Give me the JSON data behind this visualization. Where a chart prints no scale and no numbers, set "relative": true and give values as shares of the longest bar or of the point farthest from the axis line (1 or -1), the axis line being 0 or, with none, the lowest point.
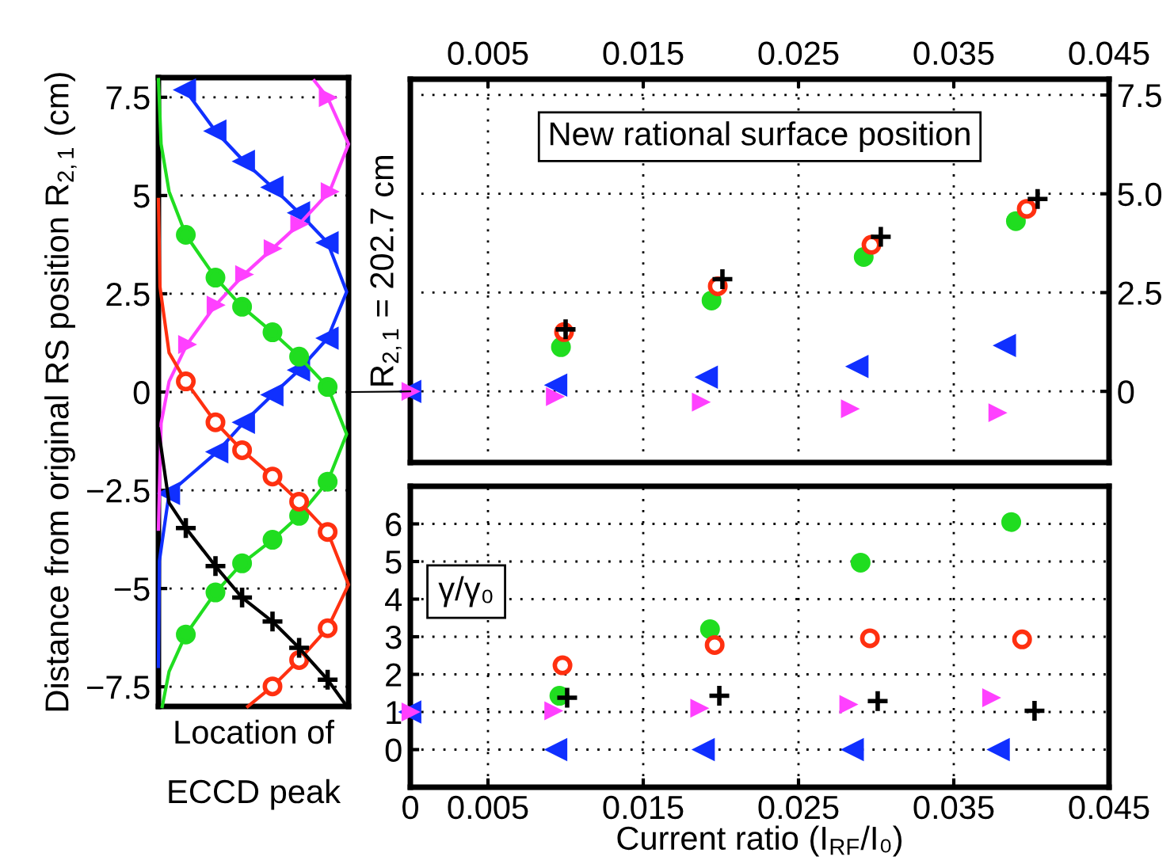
{
  "chart_data": [
    {
      "type": "line",
      "orientation": "horizontal",
      "relative": true,
      "xlabel": "Location of\nECCD peak",
      "ylabel": "Distance from original RS position R$_{2,1}$ (cm)",
      "ylim": [
        -8,
        8
      ],
      "yticks": [
        {
          "value": -7.5,
          "label": "−7.5"
        },
        {
          "value": -5,
          "label": "−5"
        },
        {
          "value": -2.5,
          "label": "−2.5"
        },
        0,
        2.5,
        5,
        7.5
      ],
      "grid": "y",
      "tick_labels": "y",
      "series": [
        {
          "type": "line",
          "color": "#1030ff",
          "marker": "none",
          "x": [
            -6.98,
            -4.3,
            -2.58,
            -1.52,
            -0.77,
            -0.07,
            0.56,
            1.37,
            2.55,
            3.8,
            4.56,
            5.21,
            5.87,
            6.64,
            7.69
          ],
          "values": [
            0,
            0.005,
            0.056,
            0.31,
            0.45,
            0.6,
            0.74,
            0.89,
            0.99,
            0.89,
            0.74,
            0.6,
            0.45,
            0.3,
            0.14
          ]
        },
        {
          "type": "scatter",
          "color": "#1030ff",
          "marker": "triangle_left",
          "x": [
            -2.58,
            -1.52,
            -0.77,
            -0.07,
            0.56,
            1.37,
            3.8,
            4.56,
            5.21,
            5.87,
            6.64,
            7.69
          ],
          "values": [
            0.056,
            0.31,
            0.45,
            0.6,
            0.74,
            0.89,
            0.89,
            0.74,
            0.6,
            0.45,
            0.3,
            0.14
          ]
        },
        {
          "type": "line",
          "color": "#ff40ff",
          "marker": "none",
          "x": [
            7.92,
            7.49,
            6.31,
            5.1,
            4.27,
            3.65,
            2.99,
            2.21,
            1.21,
            0.27,
            -0.8,
            -3.49
          ],
          "values": [
            0.82,
            0.89,
            1.0,
            0.9,
            0.74,
            0.6,
            0.45,
            0.3,
            0.15,
            0.056,
            0.014,
            0
          ]
        },
        {
          "type": "scatter",
          "color": "#ff40ff",
          "marker": "triangle_right",
          "x": [
            7.49,
            5.1,
            4.27,
            3.65,
            2.99,
            2.21,
            1.21
          ],
          "values": [
            0.89,
            0.9,
            0.74,
            0.6,
            0.45,
            0.3,
            0.15
          ]
        },
        {
          "type": "line",
          "color": "#20dd20",
          "marker": "none",
          "x": [
            7.95,
            6.31,
            5.1,
            4.0,
            2.91,
            2.17,
            1.52,
            0.9,
            0.13,
            -1.07,
            -2.28,
            -3.15,
            -3.76,
            -4.36,
            -5.1,
            -6.17,
            -7.11,
            -8.0
          ],
          "values": [
            0,
            0.014,
            0.056,
            0.144,
            0.3,
            0.44,
            0.6,
            0.74,
            0.89,
            0.99,
            0.89,
            0.74,
            0.6,
            0.44,
            0.3,
            0.144,
            0.056,
            0.02
          ]
        },
        {
          "type": "scatter",
          "color": "#20dd20",
          "marker": "circle",
          "x": [
            4.0,
            2.91,
            2.17,
            1.52,
            0.9,
            0.13,
            -2.28,
            -3.15,
            -3.76,
            -4.36,
            -5.1,
            -6.17
          ],
          "values": [
            0.144,
            0.3,
            0.44,
            0.6,
            0.74,
            0.89,
            0.89,
            0.74,
            0.6,
            0.44,
            0.3,
            0.144
          ]
        },
        {
          "type": "line",
          "color": "#ff3010",
          "marker": "none",
          "x": [
            4.9,
            2.68,
            1.0,
            0.27,
            -0.77,
            -1.48,
            -2.15,
            -2.79,
            -3.56,
            -4.9,
            -6.01,
            -6.82,
            -7.49,
            -8.0
          ],
          "values": [
            0,
            0.008,
            0.056,
            0.144,
            0.3,
            0.44,
            0.6,
            0.74,
            0.89,
            1.0,
            0.89,
            0.74,
            0.6,
            0.47
          ]
        },
        {
          "type": "scatter",
          "color": "#ff3010",
          "marker": "circle_open",
          "x": [
            0.27,
            -0.77,
            -1.48,
            -2.15,
            -2.79,
            -3.56,
            -6.01,
            -6.82,
            -7.49
          ],
          "values": [
            0.144,
            0.3,
            0.44,
            0.6,
            0.74,
            0.89,
            0.89,
            0.74,
            0.6
          ]
        },
        {
          "type": "line",
          "color": "#000000",
          "marker": "none",
          "x": [
            -0.94,
            -2.82,
            -3.46,
            -4.43,
            -5.23,
            -5.84,
            -6.51,
            -7.32,
            -7.99
          ],
          "values": [
            0,
            0.056,
            0.144,
            0.3,
            0.44,
            0.6,
            0.74,
            0.89,
            0.99
          ]
        },
        {
          "type": "scatter",
          "color": "#000000",
          "marker": "cross",
          "x": [
            -3.46,
            -4.43,
            -5.23,
            -5.84,
            -6.51,
            -7.32
          ],
          "values": [
            0.144,
            0.3,
            0.44,
            0.6,
            0.74,
            0.89
          ]
        }
      ]
    },
    {
      "type": "scatter",
      "title": "New rational surface position",
      "ylabel": "R$_{2,1}$ = 202.7 cm",
      "xlim": [
        0,
        0.045
      ],
      "xticks": [
        0.005,
        0.015,
        0.025,
        0.035,
        0.045
      ],
      "ylim": [
        -1.8,
        7.9
      ],
      "yticks": [
        0,
        2.5,
        {
          "value": 5,
          "label": "5.0"
        },
        7.5
      ],
      "grid": true,
      "series": [
        {
          "color": "#1030ff",
          "marker": "triangle_left",
          "x": [
            0,
            0.0094,
            0.0191,
            0.0288,
            0.0383
          ],
          "values": [
            0,
            0.16,
            0.36,
            0.63,
            1.16
          ]
        },
        {
          "color": "#ff40ff",
          "marker": "triangle_right",
          "x": [
            0,
            0.0093,
            0.0187,
            0.0283,
            0.0378
          ],
          "values": [
            0,
            -0.13,
            -0.27,
            -0.44,
            -0.54
          ]
        },
        {
          "color": "#20dd20",
          "marker": "circle",
          "x": [
            0.0097,
            0.0194,
            0.0292,
            0.039
          ],
          "values": [
            1.12,
            2.3,
            3.4,
            4.31
          ]
        },
        {
          "color": "#ff3010",
          "marker": "circle_open",
          "x": [
            0.0099,
            0.0198,
            0.0297,
            0.0397
          ],
          "values": [
            1.5,
            2.66,
            3.71,
            4.62
          ]
        },
        {
          "color": "#000000",
          "marker": "cross",
          "x": [
            0.01,
            0.0201,
            0.0303,
            0.0404
          ],
          "values": [
            1.57,
            2.84,
            3.91,
            4.87
          ]
        }
      ]
    },
    {
      "type": "scatter",
      "title": "γ/γ₀",
      "xlabel": "Current ratio (I$_{RF}$/I₀)",
      "xlim": [
        0,
        0.045
      ],
      "xticks": [
        0,
        0.005,
        0.015,
        0.025,
        0.035,
        0.045
      ],
      "ylim": [
        -1,
        7
      ],
      "yticks": [
        0,
        1,
        2,
        3,
        4,
        5,
        6
      ],
      "grid": true,
      "series": [
        {
          "color": "#1030ff",
          "marker": "triangle_left",
          "x": [
            0,
            0.0094,
            0.0189,
            0.0285,
            0.0379
          ],
          "values": [
            1,
            0,
            0,
            0,
            0
          ]
        },
        {
          "color": "#ff40ff",
          "marker": "triangle_right",
          "x": [
            0,
            0.0092,
            0.0186,
            0.0282,
            0.0374
          ],
          "values": [
            1,
            1.03,
            1.1,
            1.2,
            1.38
          ]
        },
        {
          "color": "#20dd20",
          "marker": "circle",
          "x": [
            0.0096,
            0.0193,
            0.029,
            0.0387
          ],
          "values": [
            1.43,
            3.2,
            4.97,
            6.05
          ]
        },
        {
          "color": "#ff3010",
          "marker": "circle_open",
          "x": [
            0.0098,
            0.0196,
            0.0296,
            0.0394
          ],
          "values": [
            2.24,
            2.78,
            2.96,
            2.93
          ]
        },
        {
          "color": "#000000",
          "marker": "cross",
          "x": [
            0.0101,
            0.0199,
            0.0301,
            0.0402
          ],
          "values": [
            1.38,
            1.43,
            1.29,
            1.03
          ]
        }
      ]
    }
  ]
}
